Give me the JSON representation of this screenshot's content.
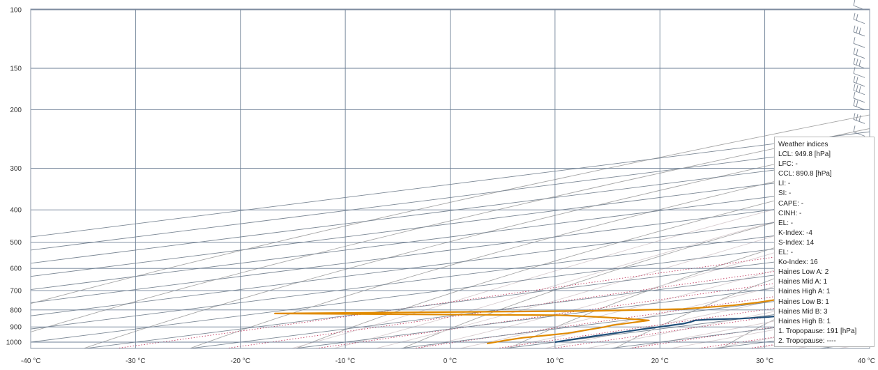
{
  "chart_data": {
    "type": "line",
    "title": "",
    "subtitle": "",
    "xlabel": "",
    "ylabel": "",
    "diagram": "skew-T log-p",
    "x_ticks": [
      "-40 °C",
      "-30 °C",
      "-20 °C",
      "-10 °C",
      "0 °C",
      "10 °C",
      "20 °C",
      "30 °C",
      "40 °C"
    ],
    "y_ticks": [
      "100",
      "150",
      "200",
      "300",
      "400",
      "500",
      "600",
      "700",
      "800",
      "900",
      "1000"
    ],
    "xlim": [
      -40,
      40
    ],
    "ylim": [
      1025,
      100
    ],
    "y_scale": "log",
    "grid": true,
    "series": [
      {
        "color": "#1f4e79",
        "x": [
          10.0,
          9.2,
          8.6,
          8.2,
          7.6,
          6.8,
          7.4,
          9.8,
          11.2,
          12.4,
          12.8,
          12.6,
          12.8,
          12.6,
          12.2,
          11.8,
          11.0,
          10.2,
          9.4,
          8.2,
          7.2,
          7.0,
          7.6,
          6.8,
          5.2,
          3.6,
          1.0,
          -1.0,
          -2.4,
          -2.6,
          -2.0,
          -1.2,
          -0.4,
          0.0,
          0.8,
          2.4,
          1.8,
          3.6,
          5.6,
          7.6,
          8.2,
          9.6,
          11.4,
          12.4,
          13.2,
          15.2,
          16.4,
          17.4
        ],
        "y": [
          1000,
          960,
          920,
          880,
          870,
          860,
          855,
          850,
          840,
          820,
          780,
          740,
          700,
          670,
          640,
          600,
          570,
          540,
          520,
          500,
          490,
          480,
          470,
          460,
          440,
          410,
          380,
          350,
          320,
          300,
          280,
          260,
          240,
          230,
          220,
          200,
          190,
          180,
          175,
          165,
          160,
          150,
          140,
          135,
          130,
          120,
          110,
          100
        ]
      },
      {
        "color": "#e08a00",
        "x": [
          4.6,
          4.0,
          3.6,
          4.4,
          3.2,
          2.6,
          2.4,
          -1.0,
          -5.0,
          -10.0,
          -38.5,
          -10.0,
          -3.0,
          -1.0,
          -0.8,
          -1.6,
          -2.4,
          -1.2,
          0.4,
          3.2,
          4.6,
          3.6,
          1.2,
          0.8,
          -0.8,
          -0.6,
          -1.0,
          -1.6,
          -2.8,
          -4.0,
          -6.0,
          -10.0,
          -14.0,
          -17.0,
          -15.5,
          -18.0,
          -15.0,
          -15.4,
          -15.6,
          -16.4,
          -16.4,
          -16.8,
          -16.4,
          -14.8,
          -15.2,
          -15.8,
          -16.2,
          -15.4,
          -15.6,
          -16.4,
          -16.8,
          -17.2,
          -15.8,
          -16.0,
          -15.6,
          -15.8,
          -15.2,
          -14.4,
          -13.0,
          -9.0,
          -6.4
        ],
        "y": [
          1010,
          990,
          970,
          940,
          900,
          890,
          860,
          850,
          840,
          830,
          820,
          805,
          795,
          775,
          760,
          730,
          700,
          680,
          665,
          655,
          640,
          625,
          620,
          600,
          580,
          560,
          545,
          520,
          500,
          490,
          485,
          470,
          465,
          455,
          430,
          410,
          390,
          370,
          340,
          320,
          300,
          290,
          270,
          260,
          240,
          225,
          210,
          200,
          190,
          180,
          170,
          160,
          150,
          140,
          130,
          120,
          115,
          110,
          107,
          103,
          100
        ]
      }
    ],
    "dry_adiabats_K": [
      220,
      230,
      240,
      250,
      260,
      270,
      280,
      290,
      300,
      310,
      320,
      330,
      340,
      350,
      360,
      370,
      380,
      390,
      400,
      410,
      420,
      430,
      440,
      450,
      460,
      470,
      480,
      490,
      500,
      510,
      520
    ],
    "moist_adiabats_C": [
      -10,
      -6,
      -2,
      2,
      6,
      10,
      14,
      18,
      22,
      26,
      30,
      34,
      38,
      42,
      46,
      50
    ],
    "mixing_ratios_gkg": [
      0.4,
      1,
      2,
      4,
      7,
      10,
      16,
      24,
      32
    ],
    "wind_barb_pressures": [
      100,
      110,
      120,
      130,
      140,
      150,
      160,
      170,
      180,
      190,
      200,
      220,
      240,
      260,
      280,
      300,
      320,
      340,
      380,
      420,
      450,
      480,
      520,
      560,
      600,
      650,
      700,
      750,
      800,
      850,
      900,
      950,
      1000
    ]
  },
  "colors": {
    "dewpoint_line": "#e08a00",
    "temperature_line": "#1f4e79",
    "grid": "#6d7f95",
    "isotherm": "#7b8794",
    "dry_adiabat": "#a6a6a6",
    "moist_adiabat": "#d8cdd0",
    "mixing_ratio": "#c0365c"
  },
  "indices": {
    "title": "Weather indices",
    "lines": [
      "LCL: 949.8 [hPa]",
      "LFC: -",
      "CCL: 890.8 [hPa]",
      "LI: -",
      "SI: -",
      "CAPE: -",
      "CINH: -",
      "EL: -",
      "K-Index: -4",
      "S-Index: 14",
      "EL: -",
      "Ko-Index: 16",
      "Haines Low A: 2",
      "Haines Mid A: 1",
      "Haines High A: 1",
      "Haines Low B: 1",
      "Haines Mid B: 3",
      "Haines High B: 1",
      "1. Tropopause: 191 [hPa]",
      "2. Tropopause: ----"
    ]
  }
}
